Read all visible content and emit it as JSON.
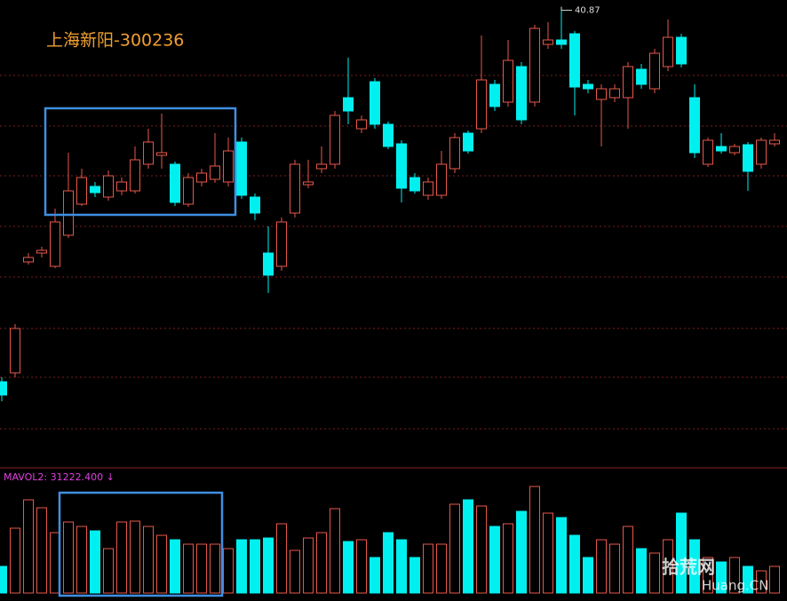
{
  "chart_data": {
    "type": "candlestick",
    "title": "上海新阳-300236",
    "volume_label": "MAVOL2: 31222.400 ↓",
    "watermark": [
      "拾荒网",
      "Huang.CN"
    ],
    "up_color": "#e8574a",
    "down_color": "#00f0f0",
    "ylim": [
      15,
      41.25
    ],
    "volume_ylim": [
      0,
      120000
    ],
    "open": [
      19.75,
      20.25,
      26.5,
      27.0,
      26.25,
      28.0,
      29.75,
      30.75,
      30.15,
      30.5,
      30.5,
      32.0,
      32.5,
      32.0,
      29.75,
      31.0,
      31.15,
      31.0,
      33.25,
      30.15,
      27.0,
      26.25,
      29.25,
      30.85,
      31.75,
      32.0,
      35.75,
      34.0,
      36.65,
      34.25,
      33.15,
      31.25,
      30.25,
      30.25,
      31.75,
      33.75,
      34.0,
      36.5,
      35.5,
      37.5,
      35.5,
      38.75,
      39.0,
      39.35,
      36.5,
      35.65,
      35.75,
      35.75,
      37.35,
      36.25,
      37.5,
      39.15,
      35.75,
      32.0,
      33.0,
      32.65,
      33.1,
      32.0,
      33.15
    ],
    "high": [
      20.0,
      23.0,
      27.0,
      27.35,
      29.5,
      32.65,
      31.75,
      31.0,
      31.65,
      31.25,
      33.0,
      34.0,
      34.85,
      32.15,
      31.5,
      31.75,
      33.75,
      33.5,
      33.5,
      30.35,
      28.5,
      29.0,
      32.25,
      32.25,
      33.0,
      35.0,
      38.0,
      34.75,
      36.85,
      34.4,
      33.35,
      31.5,
      31.25,
      32.75,
      33.75,
      33.9,
      39.25,
      36.75,
      39.0,
      37.75,
      39.85,
      40.0,
      40.87,
      39.5,
      36.75,
      36.5,
      36.5,
      37.75,
      37.65,
      38.5,
      40.15,
      39.35,
      36.5,
      33.5,
      33.75,
      33.15,
      33.25,
      33.5,
      33.75
    ],
    "low": [
      18.65,
      20.0,
      26.35,
      26.75,
      26.15,
      27.85,
      29.65,
      30.15,
      29.95,
      30.25,
      30.35,
      31.75,
      31.75,
      29.65,
      29.6,
      30.75,
      30.95,
      30.75,
      30.05,
      28.85,
      24.75,
      26.0,
      29.0,
      30.65,
      31.5,
      31.75,
      34.25,
      33.75,
      34.0,
      32.85,
      29.85,
      30.35,
      30.0,
      30.05,
      31.5,
      32.6,
      33.75,
      35.0,
      35.25,
      34.25,
      35.25,
      38.5,
      38.5,
      34.75,
      36.0,
      33.0,
      35.5,
      34.0,
      36.25,
      36.0,
      37.25,
      37.45,
      32.35,
      31.85,
      32.6,
      32.5,
      30.5,
      31.75,
      33.0
    ],
    "close": [
      19.0,
      22.75,
      26.75,
      27.15,
      28.75,
      30.5,
      31.25,
      30.4,
      31.35,
      31.0,
      32.25,
      33.25,
      32.65,
      29.85,
      31.25,
      31.5,
      31.9,
      32.75,
      30.25,
      29.25,
      25.75,
      28.75,
      32.0,
      31.0,
      32.0,
      34.75,
      35.0,
      34.5,
      34.25,
      33.0,
      30.65,
      30.5,
      31.0,
      32.0,
      33.5,
      32.75,
      36.75,
      35.25,
      37.85,
      34.5,
      39.65,
      39.0,
      38.75,
      36.35,
      36.25,
      36.25,
      36.25,
      37.5,
      36.5,
      38.25,
      39.15,
      37.65,
      32.65,
      33.35,
      32.75,
      33.0,
      31.6,
      33.35,
      33.35
    ],
    "volume": [
      30000,
      73000,
      105000,
      96000,
      68000,
      80000,
      75000,
      70000,
      50000,
      80000,
      81000,
      75000,
      65000,
      60000,
      55000,
      55000,
      55000,
      50000,
      60000,
      60000,
      62000,
      78000,
      48000,
      62000,
      68000,
      95000,
      58000,
      60000,
      40000,
      68000,
      60000,
      40000,
      55000,
      55000,
      100000,
      105000,
      98000,
      75000,
      78000,
      92000,
      120000,
      90000,
      85000,
      65000,
      40000,
      60000,
      55000,
      75000,
      50000,
      45000,
      60000,
      90000,
      60000,
      40000,
      35000,
      40000,
      30000,
      25000,
      30000
    ]
  }
}
